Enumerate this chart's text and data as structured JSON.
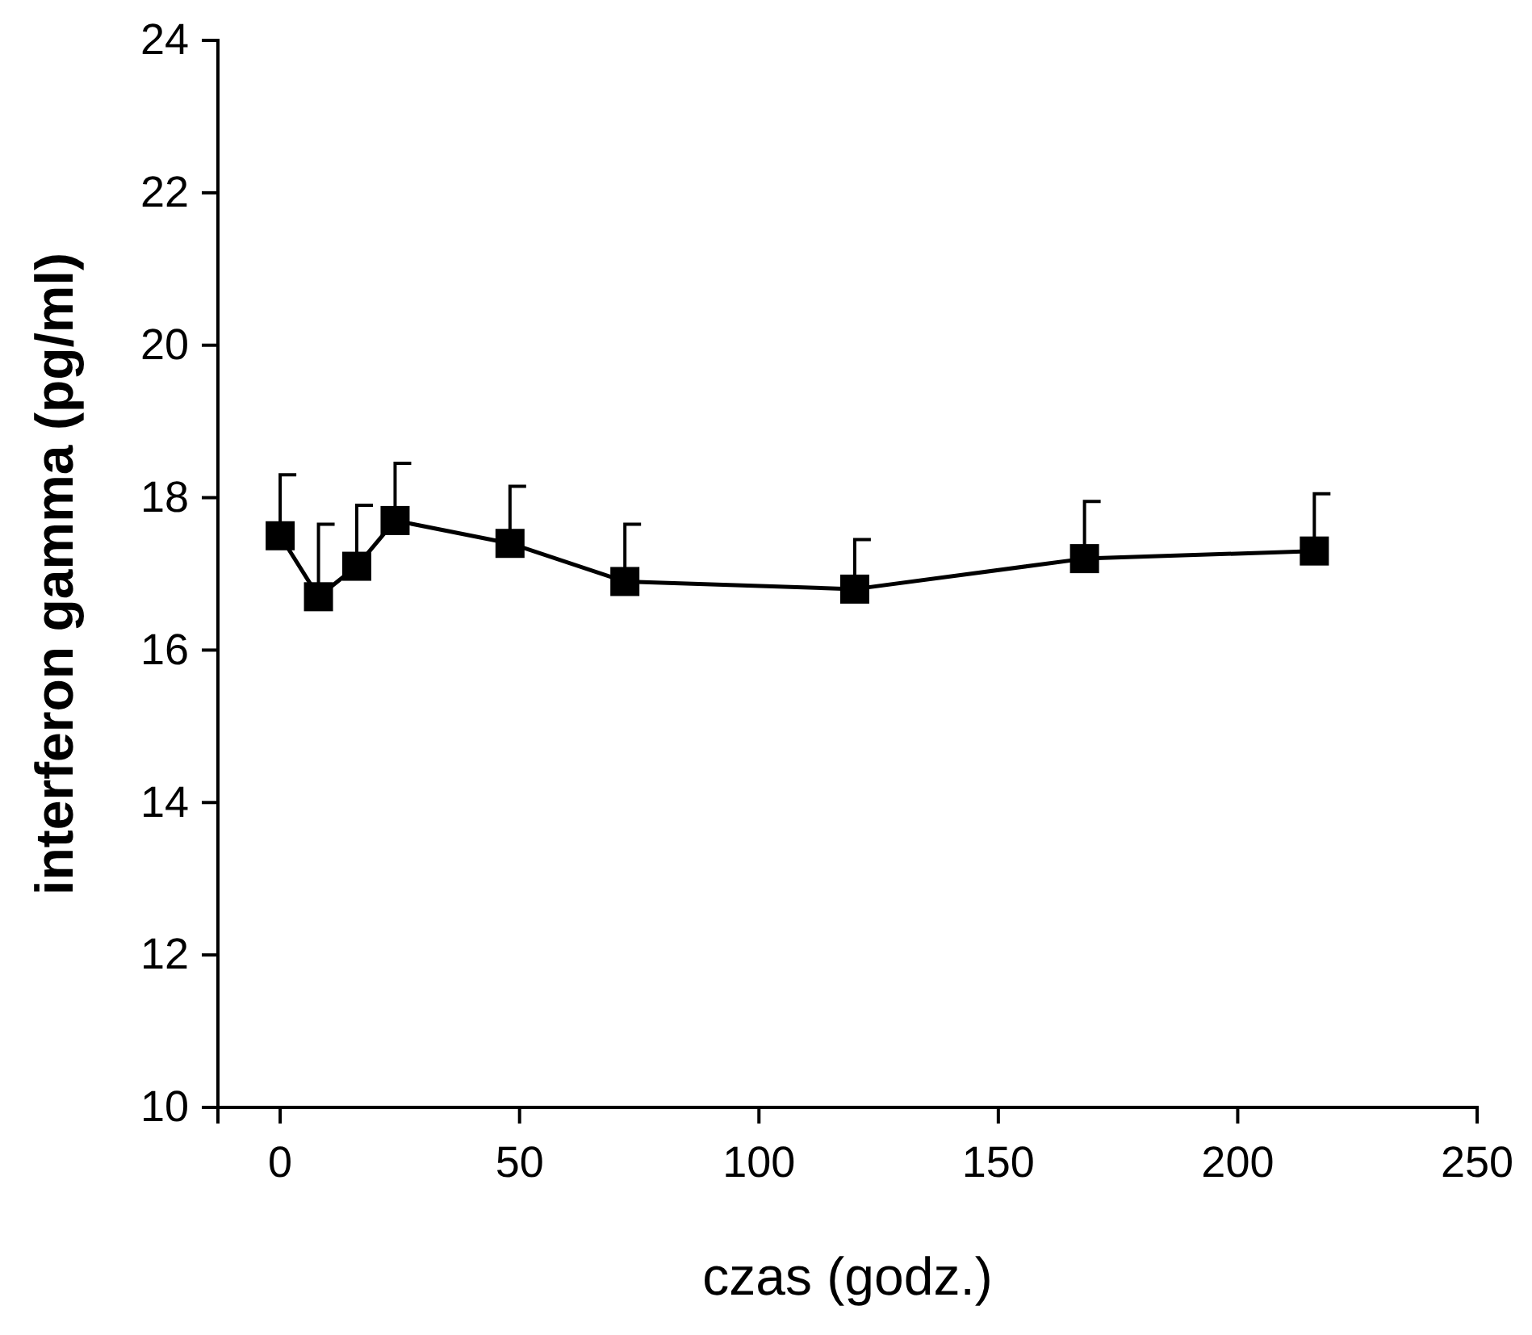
{
  "chart_data": {
    "type": "line",
    "xlabel": "czas (godz.)",
    "ylabel": "interferon gamma (pg/ml)",
    "x": [
      0,
      8,
      16,
      24,
      48,
      72,
      120,
      168,
      216
    ],
    "series": [
      {
        "color": "#000000",
        "values": [
          17.5,
          16.7,
          17.1,
          17.7,
          17.4,
          16.9,
          16.8,
          17.2,
          17.3
        ],
        "errors": [
          [
            17.5,
            18.3
          ],
          [
            16.7,
            17.65
          ],
          [
            17.1,
            17.9
          ],
          [
            17.7,
            18.45
          ],
          [
            17.4,
            18.15
          ],
          [
            16.9,
            17.65
          ],
          [
            16.8,
            17.45
          ],
          [
            17.2,
            17.95
          ],
          [
            17.3,
            18.05
          ]
        ]
      }
    ],
    "xlim": [
      -13,
      250
    ],
    "xticks": [
      0,
      50,
      100,
      150,
      200,
      250
    ],
    "ylim": [
      10,
      24
    ],
    "yticks": [
      10,
      12,
      14,
      16,
      18,
      20,
      22,
      24
    ],
    "marker": "square",
    "line_style": "solid",
    "grid": false
  }
}
